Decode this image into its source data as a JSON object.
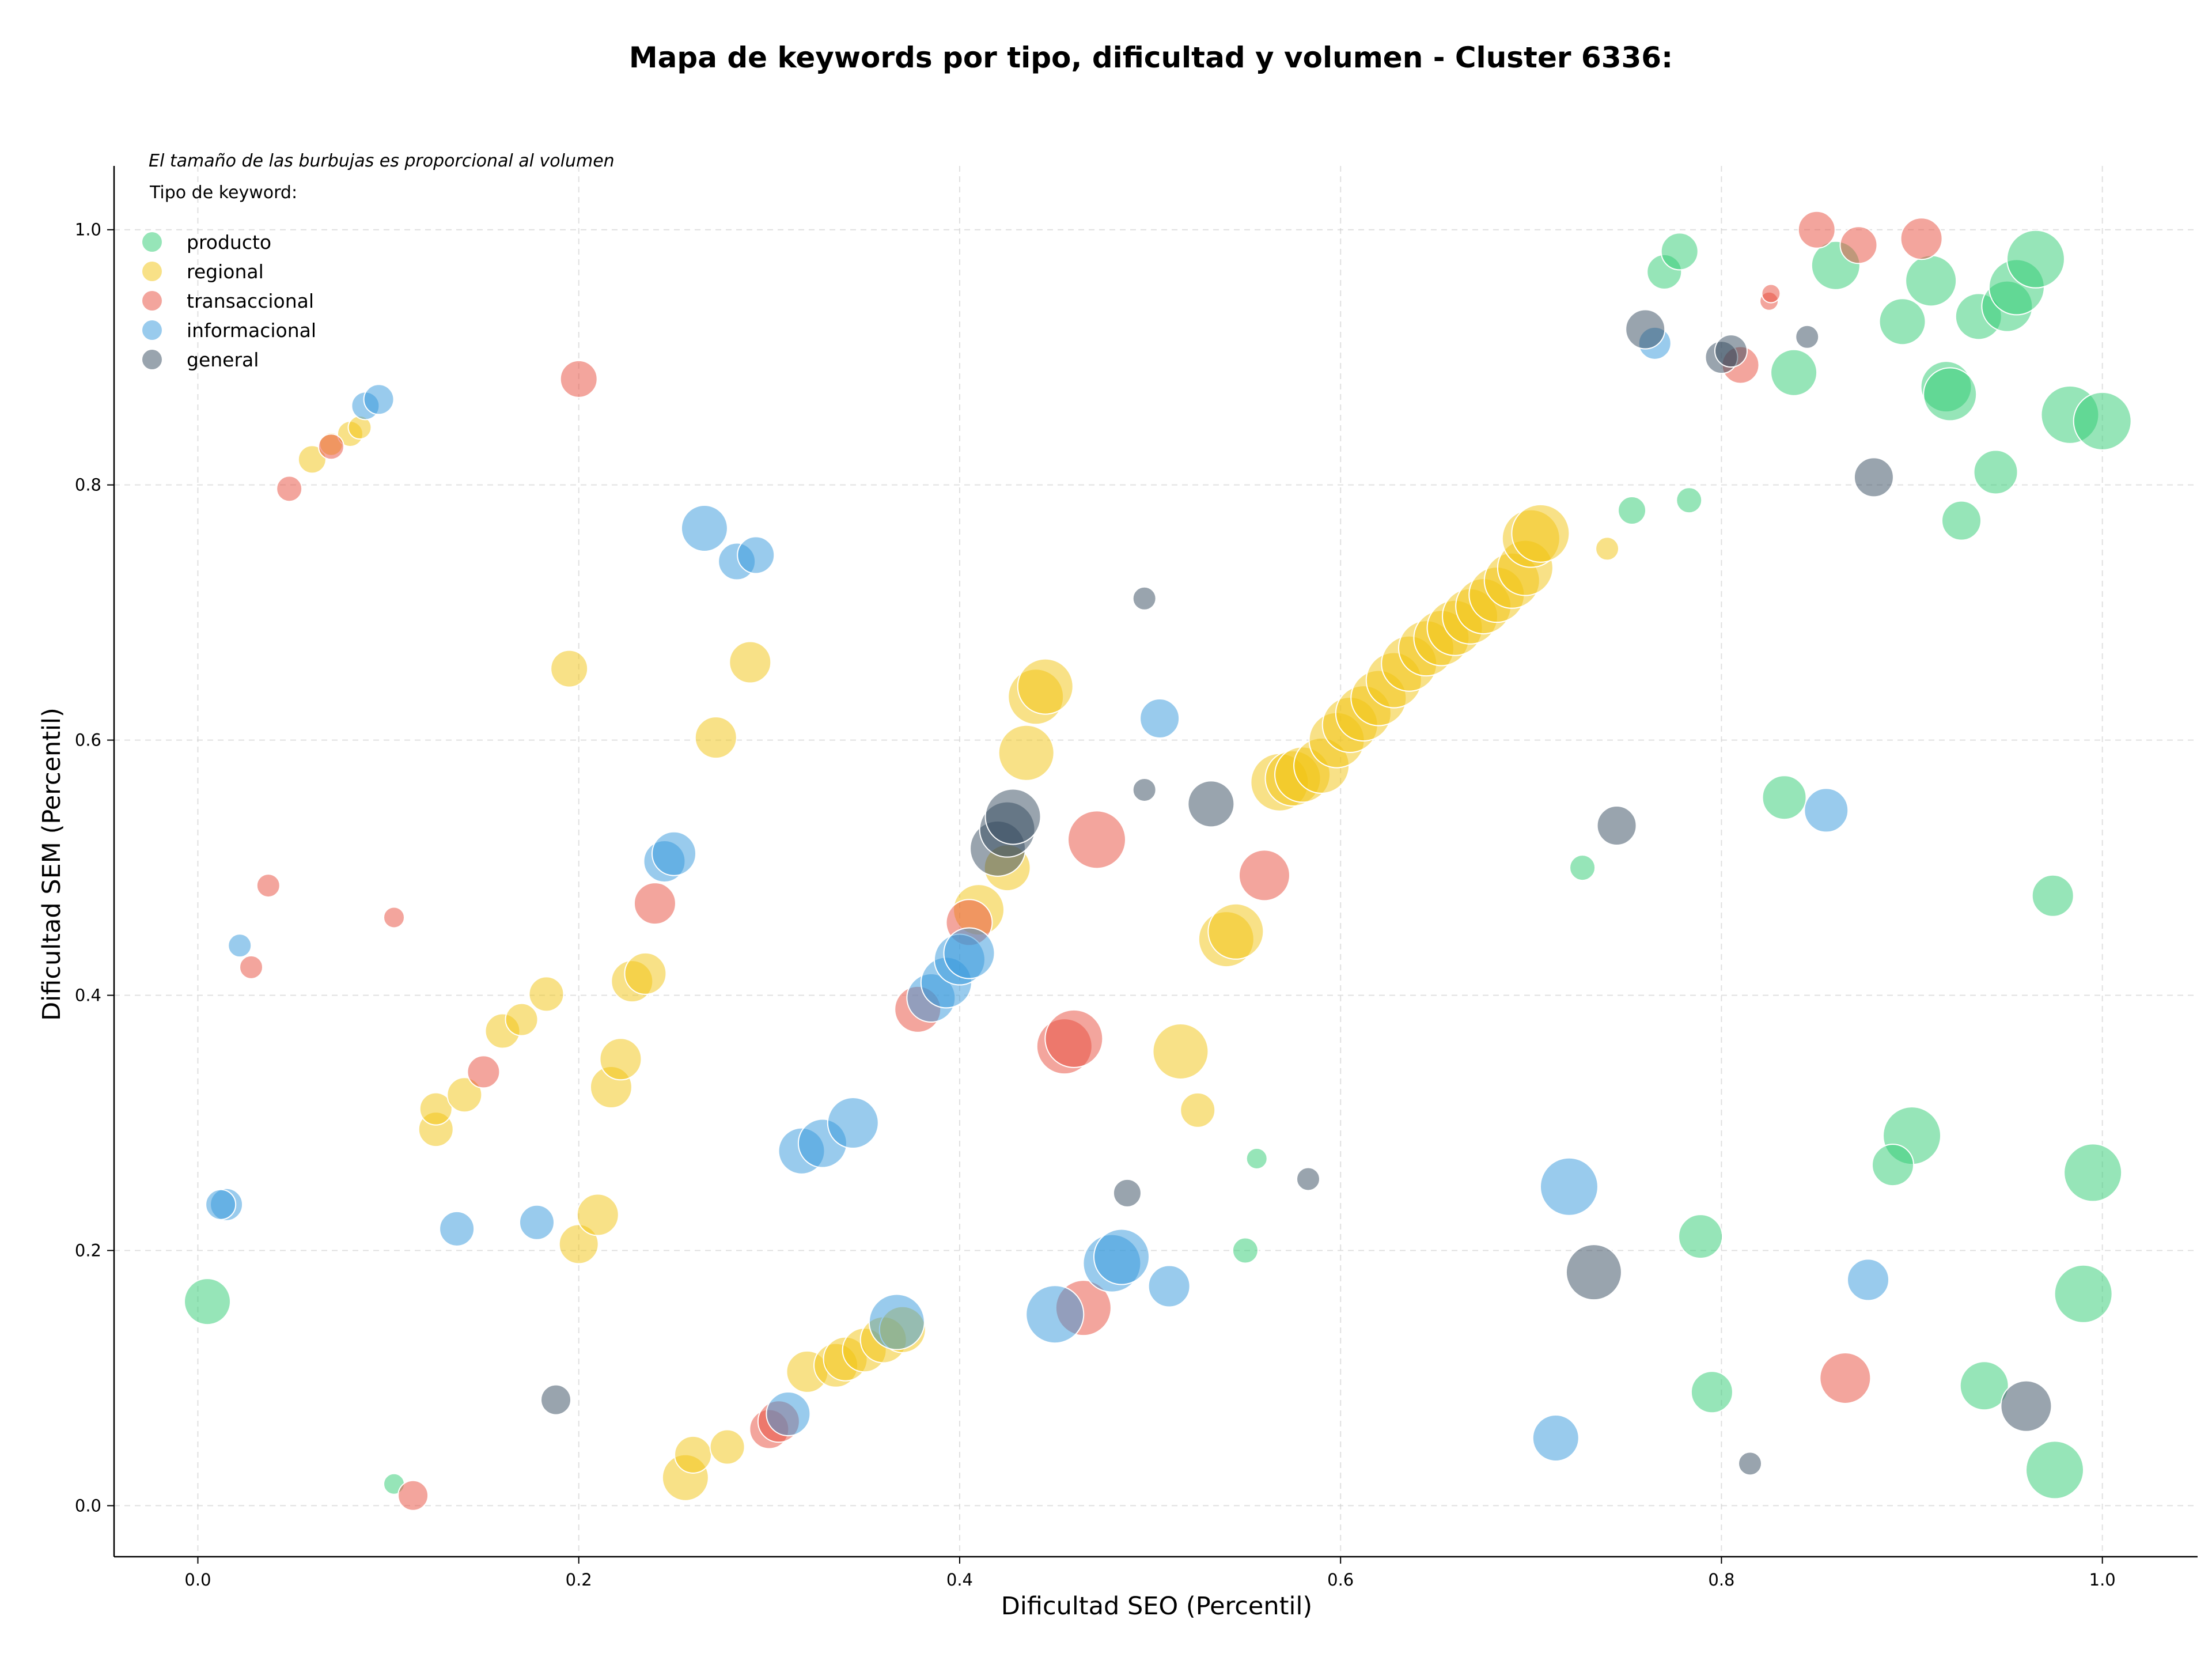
{
  "chart_data": {
    "type": "scatter",
    "title": "Mapa de keywords por tipo, dificultad y volumen - Cluster 6336:",
    "xlabel": "Dificultad SEO (Percentil)",
    "ylabel": "Dificultad SEM (Percentil)",
    "note": "El tamaño de las burbujas es proporcional al volumen",
    "legend_title": "Tipo de keyword:",
    "legend_position": "top-left",
    "grid": true,
    "xlim": [
      -0.044,
      1.05
    ],
    "ylim": [
      -0.04,
      1.05
    ],
    "xticks": [
      {
        "v": 0.0,
        "label": "0.0"
      },
      {
        "v": 0.2,
        "label": "0.2"
      },
      {
        "v": 0.4,
        "label": "0.4"
      },
      {
        "v": 0.6,
        "label": "0.6"
      },
      {
        "v": 0.8,
        "label": "0.8"
      },
      {
        "v": 1.0,
        "label": "1.0"
      }
    ],
    "yticks": [
      {
        "v": 0.0,
        "label": "0.0"
      },
      {
        "v": 0.2,
        "label": "0.2"
      },
      {
        "v": 0.4,
        "label": "0.4"
      },
      {
        "v": 0.6,
        "label": "0.6"
      },
      {
        "v": 0.8,
        "label": "0.8"
      },
      {
        "v": 1.0,
        "label": "1.0"
      }
    ],
    "series": [
      {
        "name": "producto",
        "color": "#2ecc71",
        "points": [
          [
            0.005,
            0.16,
            40
          ],
          [
            0.103,
            0.017,
            18
          ],
          [
            0.556,
            0.272,
            18
          ],
          [
            0.55,
            0.2,
            22
          ],
          [
            0.727,
            0.5,
            22
          ],
          [
            0.753,
            0.78,
            24
          ],
          [
            0.783,
            0.788,
            22
          ],
          [
            0.77,
            0.967,
            30
          ],
          [
            0.778,
            0.983,
            32
          ],
          [
            0.833,
            0.555,
            38
          ],
          [
            0.838,
            0.888,
            40
          ],
          [
            0.86,
            0.972,
            42
          ],
          [
            0.895,
            0.928,
            40
          ],
          [
            0.91,
            0.96,
            44
          ],
          [
            0.918,
            0.877,
            44
          ],
          [
            0.92,
            0.871,
            46
          ],
          [
            0.935,
            0.932,
            40
          ],
          [
            0.95,
            0.94,
            44
          ],
          [
            0.955,
            0.955,
            48
          ],
          [
            0.965,
            0.977,
            50
          ],
          [
            0.983,
            0.855,
            50
          ],
          [
            1.0,
            0.85,
            50
          ],
          [
            0.944,
            0.81,
            38
          ],
          [
            0.926,
            0.772,
            34
          ],
          [
            0.974,
            0.478,
            36
          ],
          [
            0.995,
            0.261,
            50
          ],
          [
            0.99,
            0.166,
            50
          ],
          [
            0.9,
            0.29,
            50
          ],
          [
            0.89,
            0.267,
            36
          ],
          [
            0.789,
            0.211,
            38
          ],
          [
            0.795,
            0.089,
            36
          ],
          [
            0.938,
            0.094,
            42
          ],
          [
            0.975,
            0.028,
            50
          ]
        ]
      },
      {
        "name": "regional",
        "color": "#f1c40f",
        "points": [
          [
            0.06,
            0.82,
            24
          ],
          [
            0.07,
            0.832,
            20
          ],
          [
            0.08,
            0.84,
            22
          ],
          [
            0.085,
            0.845,
            20
          ],
          [
            0.195,
            0.656,
            32
          ],
          [
            0.272,
            0.602,
            36
          ],
          [
            0.29,
            0.661,
            36
          ],
          [
            0.125,
            0.295,
            30
          ],
          [
            0.125,
            0.311,
            28
          ],
          [
            0.14,
            0.322,
            30
          ],
          [
            0.16,
            0.372,
            30
          ],
          [
            0.17,
            0.381,
            28
          ],
          [
            0.183,
            0.401,
            30
          ],
          [
            0.2,
            0.205,
            34
          ],
          [
            0.21,
            0.228,
            36
          ],
          [
            0.217,
            0.328,
            36
          ],
          [
            0.222,
            0.35,
            36
          ],
          [
            0.228,
            0.411,
            36
          ],
          [
            0.235,
            0.417,
            36
          ],
          [
            0.256,
            0.022,
            40
          ],
          [
            0.26,
            0.04,
            32
          ],
          [
            0.278,
            0.046,
            30
          ],
          [
            0.32,
            0.105,
            36
          ],
          [
            0.335,
            0.11,
            38
          ],
          [
            0.34,
            0.115,
            38
          ],
          [
            0.35,
            0.122,
            38
          ],
          [
            0.36,
            0.13,
            40
          ],
          [
            0.37,
            0.138,
            40
          ],
          [
            0.41,
            0.467,
            44
          ],
          [
            0.425,
            0.5,
            40
          ],
          [
            0.435,
            0.59,
            48
          ],
          [
            0.44,
            0.634,
            48
          ],
          [
            0.445,
            0.642,
            48
          ],
          [
            0.516,
            0.356,
            48
          ],
          [
            0.525,
            0.31,
            30
          ],
          [
            0.54,
            0.444,
            48
          ],
          [
            0.545,
            0.45,
            48
          ],
          [
            0.568,
            0.567,
            50
          ],
          [
            0.575,
            0.57,
            48
          ],
          [
            0.58,
            0.573,
            48
          ],
          [
            0.59,
            0.58,
            48
          ],
          [
            0.598,
            0.6,
            48
          ],
          [
            0.605,
            0.612,
            48
          ],
          [
            0.612,
            0.621,
            48
          ],
          [
            0.62,
            0.633,
            48
          ],
          [
            0.628,
            0.647,
            48
          ],
          [
            0.636,
            0.66,
            48
          ],
          [
            0.645,
            0.672,
            48
          ],
          [
            0.653,
            0.68,
            48
          ],
          [
            0.66,
            0.688,
            48
          ],
          [
            0.668,
            0.697,
            48
          ],
          [
            0.675,
            0.705,
            48
          ],
          [
            0.682,
            0.714,
            48
          ],
          [
            0.69,
            0.725,
            48
          ],
          [
            0.697,
            0.735,
            48
          ],
          [
            0.7,
            0.758,
            50
          ],
          [
            0.705,
            0.762,
            50
          ],
          [
            0.74,
            0.75,
            20
          ]
        ]
      },
      {
        "name": "transaccional",
        "color": "#e74c3c",
        "points": [
          [
            0.048,
            0.797,
            22
          ],
          [
            0.07,
            0.83,
            22
          ],
          [
            0.028,
            0.422,
            20
          ],
          [
            0.037,
            0.486,
            20
          ],
          [
            0.103,
            0.461,
            18
          ],
          [
            0.2,
            0.883,
            32
          ],
          [
            0.24,
            0.472,
            36
          ],
          [
            0.15,
            0.34,
            28
          ],
          [
            0.113,
            0.008,
            26
          ],
          [
            0.3,
            0.06,
            34
          ],
          [
            0.305,
            0.066,
            36
          ],
          [
            0.378,
            0.389,
            40
          ],
          [
            0.405,
            0.457,
            40
          ],
          [
            0.455,
            0.36,
            48
          ],
          [
            0.46,
            0.366,
            50
          ],
          [
            0.465,
            0.155,
            48
          ],
          [
            0.472,
            0.522,
            50
          ],
          [
            0.56,
            0.494,
            44
          ],
          [
            0.81,
            0.894,
            32
          ],
          [
            0.825,
            0.944,
            16
          ],
          [
            0.826,
            0.95,
            16
          ],
          [
            0.85,
            1.0,
            32
          ],
          [
            0.872,
            0.988,
            32
          ],
          [
            0.905,
            0.993,
            36
          ],
          [
            0.865,
            0.1,
            44
          ]
        ]
      },
      {
        "name": "informacional",
        "color": "#3498db",
        "points": [
          [
            0.022,
            0.439,
            20
          ],
          [
            0.015,
            0.236,
            28
          ],
          [
            0.012,
            0.236,
            26
          ],
          [
            0.088,
            0.862,
            24
          ],
          [
            0.095,
            0.867,
            26
          ],
          [
            0.136,
            0.217,
            30
          ],
          [
            0.178,
            0.222,
            30
          ],
          [
            0.245,
            0.505,
            36
          ],
          [
            0.25,
            0.511,
            38
          ],
          [
            0.266,
            0.766,
            40
          ],
          [
            0.283,
            0.74,
            32
          ],
          [
            0.293,
            0.745,
            32
          ],
          [
            0.31,
            0.072,
            38
          ],
          [
            0.317,
            0.278,
            40
          ],
          [
            0.328,
            0.284,
            42
          ],
          [
            0.344,
            0.3,
            44
          ],
          [
            0.367,
            0.144,
            48
          ],
          [
            0.385,
            0.398,
            42
          ],
          [
            0.393,
            0.41,
            44
          ],
          [
            0.4,
            0.428,
            44
          ],
          [
            0.405,
            0.433,
            44
          ],
          [
            0.45,
            0.15,
            50
          ],
          [
            0.48,
            0.19,
            50
          ],
          [
            0.485,
            0.195,
            48
          ],
          [
            0.505,
            0.617,
            34
          ],
          [
            0.51,
            0.172,
            36
          ],
          [
            0.713,
            0.053,
            40
          ],
          [
            0.72,
            0.25,
            50
          ],
          [
            0.765,
            0.911,
            28
          ],
          [
            0.855,
            0.545,
            38
          ],
          [
            0.877,
            0.177,
            36
          ]
        ]
      },
      {
        "name": "general",
        "color": "#34495e",
        "points": [
          [
            0.188,
            0.083,
            26
          ],
          [
            0.42,
            0.515,
            48
          ],
          [
            0.425,
            0.53,
            48
          ],
          [
            0.428,
            0.54,
            48
          ],
          [
            0.488,
            0.245,
            24
          ],
          [
            0.497,
            0.711,
            20
          ],
          [
            0.497,
            0.561,
            20
          ],
          [
            0.532,
            0.55,
            40
          ],
          [
            0.583,
            0.256,
            20
          ],
          [
            0.733,
            0.183,
            48
          ],
          [
            0.745,
            0.533,
            34
          ],
          [
            0.76,
            0.922,
            34
          ],
          [
            0.8,
            0.9,
            28
          ],
          [
            0.805,
            0.905,
            28
          ],
          [
            0.845,
            0.916,
            20
          ],
          [
            0.815,
            0.033,
            20
          ],
          [
            0.88,
            0.806,
            34
          ],
          [
            0.96,
            0.078,
            44
          ]
        ]
      }
    ]
  }
}
